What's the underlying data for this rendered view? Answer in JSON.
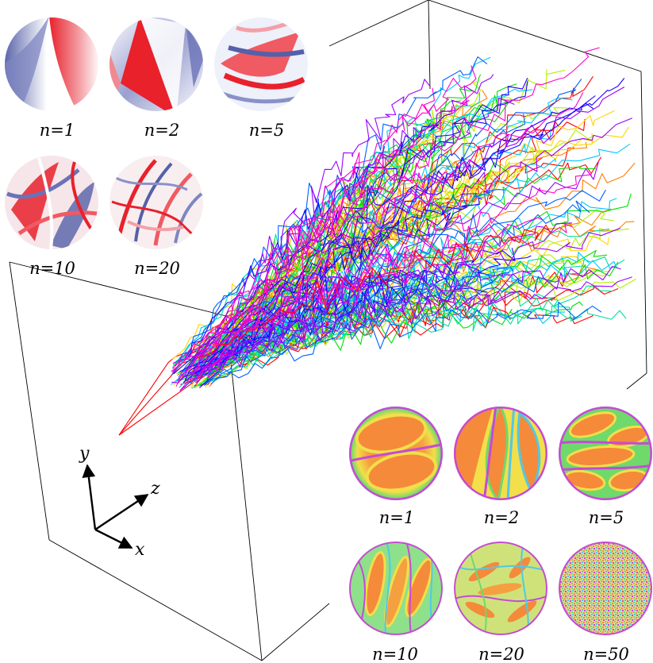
{
  "axes": {
    "x_label": "x",
    "y_label": "y",
    "z_label": "z"
  },
  "top_panel": {
    "colormap": "diverging-red-white-blue",
    "colors": {
      "positive": "#e8212b",
      "neutral": "#ffffff",
      "negative": "#5560a8"
    },
    "disks": [
      {
        "label": "n=1",
        "n": 1
      },
      {
        "label": "n=2",
        "n": 2
      },
      {
        "label": "n=5",
        "n": 5
      },
      {
        "label": "n=10",
        "n": 10
      },
      {
        "label": "n=20",
        "n": 20
      }
    ]
  },
  "bottom_panel": {
    "colormap": "rainbow",
    "colors": {
      "core": "#f58a3a",
      "mid": "#f2df4a",
      "edge1": "#6fd96b",
      "edge2": "#51c8e6",
      "edge3": "#c64ad6"
    },
    "disks": [
      {
        "label": "n=1",
        "n": 1
      },
      {
        "label": "n=2",
        "n": 2
      },
      {
        "label": "n=5",
        "n": 5
      },
      {
        "label": "n=10",
        "n": 10
      },
      {
        "label": "n=20",
        "n": 20
      },
      {
        "label": "n=50",
        "n": 50
      }
    ]
  },
  "trajectory_colors": [
    "#ff0000",
    "#ff7f00",
    "#ffd400",
    "#b6f000",
    "#00e000",
    "#00e0a0",
    "#00c8ff",
    "#0060ff",
    "#2000ff",
    "#9a00ff",
    "#ff00c8"
  ]
}
